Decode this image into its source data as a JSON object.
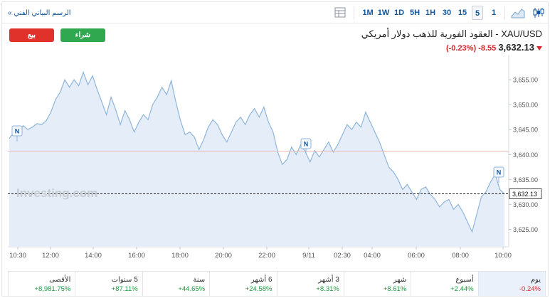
{
  "toolbar": {
    "technical_chart_link": "الرسم البياني الفني »",
    "timeframes": [
      "1M",
      "1W",
      "1D",
      "5H",
      "1H",
      "30",
      "15",
      "5",
      "1"
    ],
    "active_timeframe": "5"
  },
  "actions": {
    "sell_label": "بيع",
    "buy_label": "شراء"
  },
  "instrument": {
    "title": "XAU/USD - العقود الفورية للذهب دولار أمريكي",
    "price": "3,632.13",
    "change": "-8.55",
    "change_pct": "(-0.23%)",
    "direction_color": "#d3262b"
  },
  "chart_data": {
    "type": "area",
    "title": "",
    "xlabel": "",
    "ylabel": "",
    "x_ticks": [
      "10:30",
      "12:00",
      "14:00",
      "16:00",
      "18:00",
      "20:00",
      "22:00",
      "9/11",
      "02:30",
      "04:00",
      "06:00",
      "08:00",
      "10:00"
    ],
    "y_ticks": [
      "3,655.00",
      "3,650.00",
      "3,645.00",
      "3,640.00",
      "3,635.00",
      "3,630.00",
      "3,625.00"
    ],
    "ylim": [
      3621.5,
      3660.0
    ],
    "previous_close": 3640.68,
    "last_price": "3,632.13",
    "watermark": "Investing.com",
    "news_marker": "N",
    "series": [
      {
        "values": [
          3643.2,
          3644.5,
          3644.0,
          3645.8,
          3645.0,
          3645.5,
          3646.2,
          3646.0,
          3646.8,
          3648.5,
          3651.0,
          3652.5,
          3655.0,
          3653.5,
          3655.0,
          3653.8,
          3656.5,
          3654.0,
          3655.8,
          3653.0,
          3650.5,
          3648.0,
          3651.5,
          3649.0,
          3646.0,
          3648.8,
          3647.0,
          3644.5,
          3646.5,
          3648.0,
          3647.0,
          3650.0,
          3651.5,
          3653.5,
          3652.0,
          3654.8,
          3650.5,
          3646.8,
          3644.0,
          3644.5,
          3643.5,
          3641.0,
          3643.0,
          3645.5,
          3647.0,
          3646.0,
          3644.0,
          3642.5,
          3644.5,
          3646.5,
          3647.5,
          3646.0,
          3648.0,
          3649.2,
          3647.5,
          3649.5,
          3646.5,
          3644.5,
          3640.5,
          3638.0,
          3639.0,
          3641.5,
          3640.0,
          3642.0,
          3640.5,
          3638.5,
          3640.8,
          3639.5,
          3641.0,
          3642.5,
          3640.5,
          3642.0,
          3644.0,
          3646.0,
          3645.0,
          3646.5,
          3645.5,
          3648.5,
          3646.5,
          3644.5,
          3642.5,
          3640.0,
          3637.5,
          3636.5,
          3635.0,
          3633.0,
          3634.0,
          3632.5,
          3631.0,
          3633.0,
          3633.5,
          3632.0,
          3631.0,
          3629.5,
          3630.5,
          3631.0,
          3629.0,
          3630.0,
          3628.5,
          3626.5,
          3624.5,
          3628.0,
          3631.5,
          3632.5,
          3634.5,
          3636.0,
          3633.0,
          3632.1
        ]
      }
    ]
  },
  "performance": [
    {
      "label": "يوم",
      "value": "-0.24%",
      "dir": "neg",
      "active": true
    },
    {
      "label": "أسبوع",
      "value": "+2.44%",
      "dir": "pos"
    },
    {
      "label": "شهر",
      "value": "+8.61%",
      "dir": "pos"
    },
    {
      "label": "3 أشهر",
      "value": "+8.31%",
      "dir": "pos"
    },
    {
      "label": "6 أشهر",
      "value": "+24.58%",
      "dir": "pos"
    },
    {
      "label": "سنة",
      "value": "+44.65%",
      "dir": "pos"
    },
    {
      "label": "5 سنوات",
      "value": "+87.11%",
      "dir": "pos"
    },
    {
      "label": "الأقصى",
      "value": "+8,981.75%",
      "dir": "pos"
    }
  ],
  "colors": {
    "link": "#1256a0",
    "sell": "#e0312b",
    "buy": "#2fa84f",
    "line": "#8fb5db",
    "area": "#e5eef8",
    "prev_close": "#efb8b8"
  }
}
